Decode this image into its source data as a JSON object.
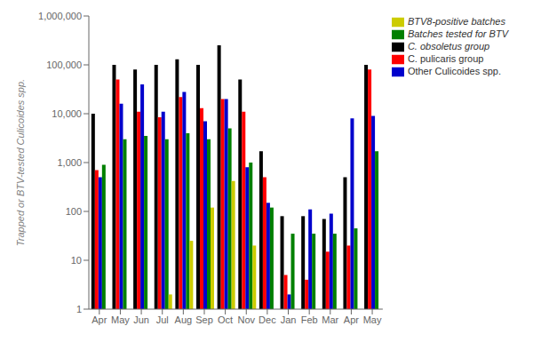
{
  "chart_data": {
    "type": "bar",
    "ylabel": "Trapped or BTV-tested Culicoides spp.",
    "categories": [
      "Apr",
      "May",
      "Jun",
      "Jul",
      "Aug",
      "Sep",
      "Oct",
      "Nov",
      "Dec",
      "Jan",
      "Feb",
      "Mar",
      "Apr",
      "May"
    ],
    "series": [
      {
        "name": "C. obsoletus group",
        "color": "#000000",
        "values": [
          10000,
          100000,
          80000,
          100000,
          130000,
          100000,
          250000,
          50000,
          1700,
          80,
          80,
          70,
          500,
          100000
        ]
      },
      {
        "name": "C. pulicaris group",
        "color": "#ff0000",
        "values": [
          700,
          50000,
          11000,
          8500,
          22000,
          13000,
          20000,
          11000,
          500,
          5,
          4,
          15,
          20,
          80000
        ]
      },
      {
        "name": "Other Culicoides spp.",
        "color": "#0000cc",
        "values": [
          500,
          16000,
          40000,
          11000,
          28000,
          7000,
          20000,
          800,
          150,
          2,
          110,
          90,
          8000,
          9000
        ]
      },
      {
        "name": "Batches tested for BTV",
        "color": "#008000",
        "values": [
          900,
          3000,
          3500,
          3000,
          4000,
          3000,
          5000,
          1000,
          120,
          35,
          35,
          35,
          45,
          1700
        ]
      },
      {
        "name": "BTV8-positive batches",
        "color": "#cccc00",
        "values": [
          null,
          null,
          null,
          2,
          25,
          120,
          420,
          20,
          null,
          null,
          null,
          null,
          null,
          null
        ]
      }
    ],
    "log": "y",
    "ylim": [
      1,
      1000000
    ],
    "yticks": [
      1,
      10,
      100,
      {
        "value": 1000,
        "label": "1,000"
      },
      {
        "value": 10000,
        "label": "10,000"
      },
      {
        "value": 100000,
        "label": "100,000"
      },
      {
        "value": 1000000,
        "label": "1,000,000"
      }
    ],
    "grid": false,
    "legend": "upper right"
  }
}
